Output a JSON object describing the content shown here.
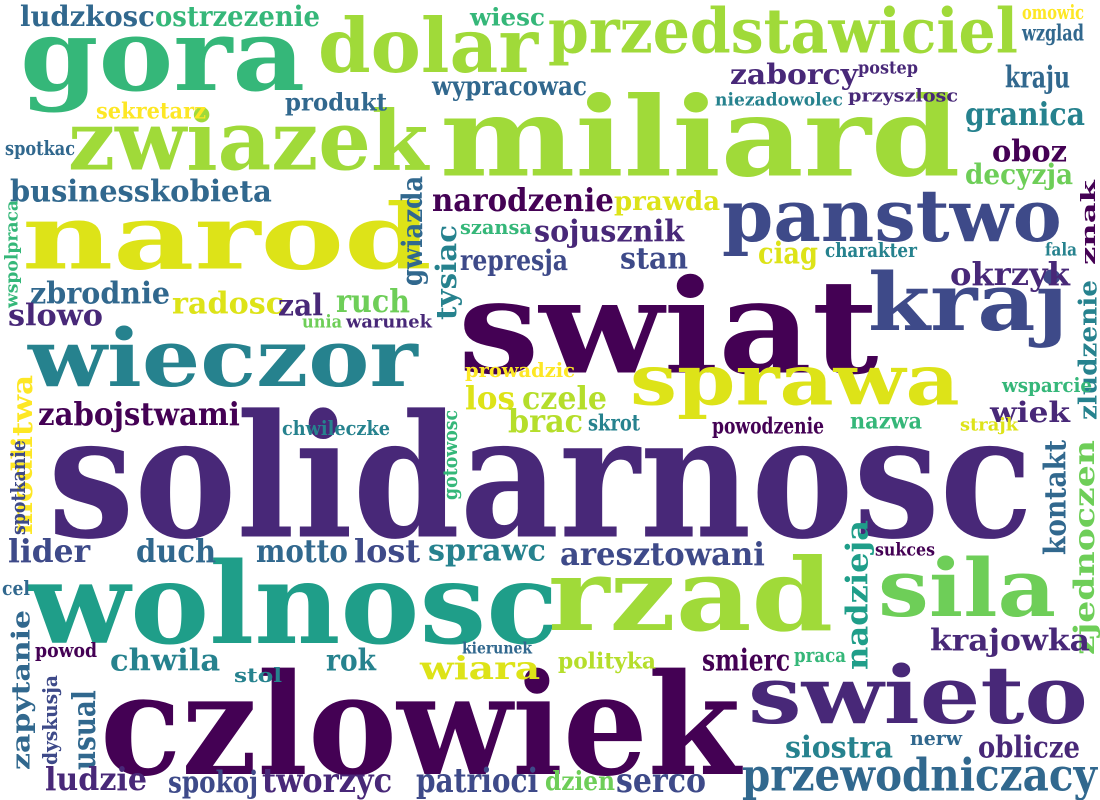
{
  "palette": {
    "dark_purple": "#440154",
    "purple": "#482878",
    "indigo": "#3e4a89",
    "blue": "#31688e",
    "teal": "#26828e",
    "green_teal": "#1f9e89",
    "green": "#35b779",
    "light_green": "#6ece58",
    "lime": "#b5de2b",
    "yellow": "#dde318",
    "bright_yellow": "#fde725"
  },
  "words": [
    {
      "text": "solidarnosc",
      "color": "#482878"
    },
    {
      "text": "czlowiek",
      "color": "#440154"
    },
    {
      "text": "wolnosc",
      "color": "#1f9e89"
    },
    {
      "text": "miliard",
      "color": "#a0da39"
    },
    {
      "text": "swiat",
      "color": "#440154"
    },
    {
      "text": "narod",
      "color": "#dde318"
    },
    {
      "text": "gora",
      "color": "#35b779"
    },
    {
      "text": "wieczor",
      "color": "#26828e"
    },
    {
      "text": "rzad",
      "color": "#a0da39"
    },
    {
      "text": "sila",
      "color": "#6ece58"
    },
    {
      "text": "swieto",
      "color": "#482878"
    },
    {
      "text": "kraj",
      "color": "#3e4a89"
    },
    {
      "text": "sprawa",
      "color": "#dde318"
    },
    {
      "text": "panstwo",
      "color": "#3e4a89"
    },
    {
      "text": "zwiazek",
      "color": "#a0da39"
    },
    {
      "text": "dolar",
      "color": "#a0da39"
    },
    {
      "text": "przedstawiciel",
      "color": "#a0da39"
    },
    {
      "text": "przewodniczacy",
      "color": "#31688e"
    },
    {
      "text": "ludzkosc",
      "color": "#31688e"
    },
    {
      "text": "ostrzezenie",
      "color": "#35b779"
    },
    {
      "text": "wiesc",
      "color": "#35b779"
    },
    {
      "text": "omowic",
      "color": "#fde725"
    },
    {
      "text": "wzglad",
      "color": "#31688e"
    },
    {
      "text": "zaborcy",
      "color": "#482878"
    },
    {
      "text": "postep",
      "color": "#482878"
    },
    {
      "text": "kraju",
      "color": "#31688e"
    },
    {
      "text": "wypracowac",
      "color": "#31688e"
    },
    {
      "text": "niezadowolec",
      "color": "#26828e"
    },
    {
      "text": "przyszlosc",
      "color": "#482878"
    },
    {
      "text": "produkt",
      "color": "#31688e"
    },
    {
      "text": "sekretarz",
      "color": "#fde725"
    },
    {
      "text": "granica",
      "color": "#26828e"
    },
    {
      "text": "spotkac",
      "color": "#31688e"
    },
    {
      "text": "oboz",
      "color": "#440154"
    },
    {
      "text": "decyzja",
      "color": "#6ece58"
    },
    {
      "text": "business",
      "color": "#31688e"
    },
    {
      "text": "kobieta",
      "color": "#31688e"
    },
    {
      "text": "narodzenie",
      "color": "#440154"
    },
    {
      "text": "prawda",
      "color": "#dde318"
    },
    {
      "text": "gwiazda",
      "color": "#31688e"
    },
    {
      "text": "szansa",
      "color": "#35b779"
    },
    {
      "text": "sojusznik",
      "color": "#482878"
    },
    {
      "text": "tysiac",
      "color": "#26828e"
    },
    {
      "text": "represja",
      "color": "#3e4a89"
    },
    {
      "text": "stan",
      "color": "#3e4a89"
    },
    {
      "text": "ciag",
      "color": "#dde318"
    },
    {
      "text": "charakter",
      "color": "#26828e"
    },
    {
      "text": "znak",
      "color": "#440154"
    },
    {
      "text": "fala",
      "color": "#26828e"
    },
    {
      "text": "okrzyk",
      "color": "#482878"
    },
    {
      "text": "wspolpraca",
      "color": "#35b779"
    },
    {
      "text": "zbrodnie",
      "color": "#31688e"
    },
    {
      "text": "radosc",
      "color": "#dde318"
    },
    {
      "text": "zal",
      "color": "#482878"
    },
    {
      "text": "ruch",
      "color": "#6ece58"
    },
    {
      "text": "slowo",
      "color": "#482878"
    },
    {
      "text": "unia",
      "color": "#6ece58"
    },
    {
      "text": "warunek",
      "color": "#482878"
    },
    {
      "text": "zludzenie",
      "color": "#26828e"
    },
    {
      "text": "prowadzic",
      "color": "#fde725"
    },
    {
      "text": "wsparcie",
      "color": "#35b779"
    },
    {
      "text": "los",
      "color": "#dde318"
    },
    {
      "text": "czele",
      "color": "#b5de2b"
    },
    {
      "text": "modlitwa",
      "color": "#fde725"
    },
    {
      "text": "zabojstwami",
      "color": "#440154"
    },
    {
      "text": "brac",
      "color": "#b5de2b"
    },
    {
      "text": "skrot",
      "color": "#26828e"
    },
    {
      "text": "wiek",
      "color": "#482878"
    },
    {
      "text": "nazwa",
      "color": "#35b779"
    },
    {
      "text": "strajk",
      "color": "#dde318"
    },
    {
      "text": "powodzenie",
      "color": "#440154"
    },
    {
      "text": "chwileczke",
      "color": "#26828e"
    },
    {
      "text": "gotowosc",
      "color": "#35b779"
    },
    {
      "text": "spotkanie",
      "color": "#3e4a89"
    },
    {
      "text": "kontakt",
      "color": "#31688e"
    },
    {
      "text": "zjednoczen",
      "color": "#6ece58"
    },
    {
      "text": "lider",
      "color": "#3e4a89"
    },
    {
      "text": "duch",
      "color": "#31688e"
    },
    {
      "text": "motto",
      "color": "#31688e"
    },
    {
      "text": "lost",
      "color": "#3e4a89"
    },
    {
      "text": "sprawc",
      "color": "#26828e"
    },
    {
      "text": "aresztowani",
      "color": "#3e4a89"
    },
    {
      "text": "nadzieja",
      "color": "#1f9e89"
    },
    {
      "text": "sukces",
      "color": "#440154"
    },
    {
      "text": "cel",
      "color": "#31688e"
    },
    {
      "text": "zapytanie",
      "color": "#31688e"
    },
    {
      "text": "powod",
      "color": "#440154"
    },
    {
      "text": "chwila",
      "color": "#26828e"
    },
    {
      "text": "rok",
      "color": "#26828e"
    },
    {
      "text": "kierunek",
      "color": "#31688e"
    },
    {
      "text": "wiara",
      "color": "#dde318"
    },
    {
      "text": "polityka",
      "color": "#b5de2b"
    },
    {
      "text": "smierc",
      "color": "#440154"
    },
    {
      "text": "praca",
      "color": "#35b779"
    },
    {
      "text": "krajowka",
      "color": "#482878"
    },
    {
      "text": "stol",
      "color": "#26828e"
    },
    {
      "text": "dyskusja",
      "color": "#3e4a89"
    },
    {
      "text": "usual",
      "color": "#31688e"
    },
    {
      "text": "siostra",
      "color": "#26828e"
    },
    {
      "text": "nerw",
      "color": "#31688e"
    },
    {
      "text": "oblicze",
      "color": "#482878"
    },
    {
      "text": "ludzie",
      "color": "#482878"
    },
    {
      "text": "spokoj",
      "color": "#3e4a89"
    },
    {
      "text": "tworzyc",
      "color": "#482878"
    },
    {
      "text": "patrioci",
      "color": "#3e4a89"
    },
    {
      "text": "dzien",
      "color": "#6ece58"
    },
    {
      "text": "serco",
      "color": "#3e4a89"
    }
  ]
}
